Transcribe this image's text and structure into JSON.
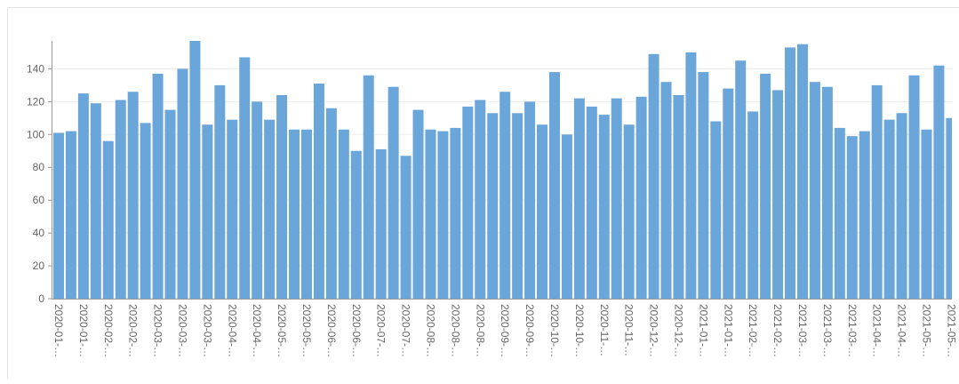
{
  "chart_data": {
    "type": "bar",
    "categories": [
      "2020-01-…",
      null,
      "2020-01-…",
      null,
      "2020-02-…",
      null,
      "2020-02-…",
      null,
      "2020-03-…",
      null,
      "2020-03-…",
      null,
      "2020-03-…",
      null,
      "2020-04-…",
      null,
      "2020-04-…",
      null,
      "2020-05-…",
      null,
      "2020-05-…",
      null,
      "2020-06-…",
      null,
      "2020-06-…",
      null,
      "2020-07-…",
      null,
      "2020-07-…",
      null,
      "2020-08-…",
      null,
      "2020-08-…",
      null,
      "2020-08-…",
      null,
      "2020-09-…",
      null,
      "2020-09-…",
      null,
      "2020-10-…",
      null,
      "2020-10-…",
      null,
      "2020-11-…",
      null,
      "2020-11-…",
      null,
      "2020-12-…",
      null,
      "2020-12-…",
      null,
      "2021-01-…",
      null,
      "2021-01-…",
      null,
      "2021-02-…",
      null,
      "2021-02-…",
      null,
      "2021-03-…",
      null,
      "2021-03-…",
      null,
      "2021-03-…",
      null,
      "2021-04-…",
      null,
      "2021-04-…",
      null,
      "2021-05-…",
      null,
      "2021-05-…"
    ],
    "values": [
      101,
      102,
      125,
      119,
      96,
      121,
      126,
      107,
      137,
      115,
      140,
      157,
      106,
      130,
      109,
      147,
      120,
      109,
      124,
      103,
      103,
      131,
      116,
      103,
      90,
      136,
      91,
      129,
      87,
      115,
      103,
      102,
      104,
      117,
      121,
      113,
      126,
      113,
      120,
      106,
      138,
      100,
      122,
      117,
      112,
      122,
      106,
      123,
      149,
      132,
      124,
      150,
      138,
      108,
      128,
      145,
      114,
      137,
      127,
      153,
      155,
      132,
      129,
      104,
      99,
      102,
      130,
      109,
      113,
      136,
      103,
      142,
      110
    ],
    "color": "#6aa6da",
    "ylim": [
      0,
      157
    ],
    "yticks": [
      0,
      20,
      40,
      60,
      80,
      100,
      120,
      140
    ],
    "grid": true
  }
}
